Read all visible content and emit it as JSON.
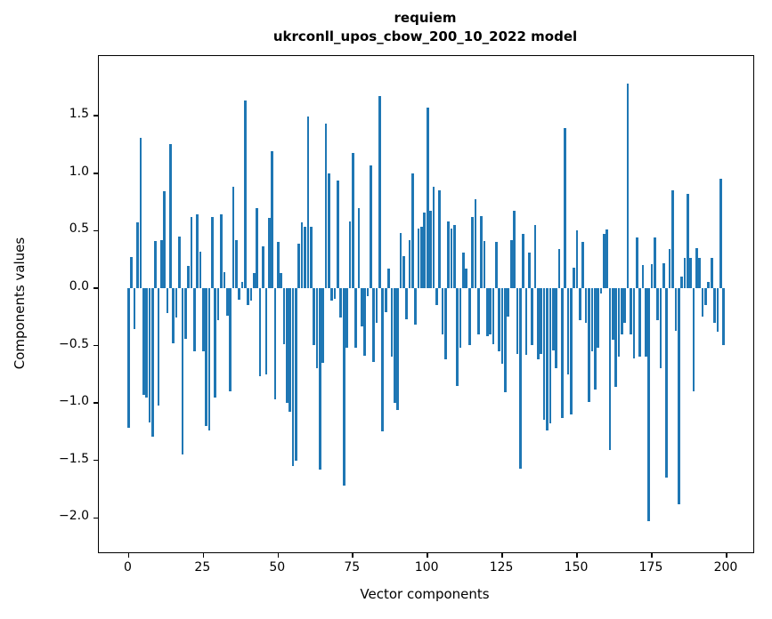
{
  "title": {
    "line1": "requiem",
    "line2": "ukrconll_upos_cbow_200_10_2022 model"
  },
  "chart_data": {
    "type": "bar",
    "title": "requiem",
    "subtitle": "ukrconll_upos_cbow_200_10_2022 model",
    "xlabel": "Vector components",
    "ylabel": "Components values",
    "bar_color": "#1f77b4",
    "grid": false,
    "xlim": [
      -9.95,
      208.95
    ],
    "ylim": [
      -2.3,
      2.02
    ],
    "x_ticks": [
      0,
      25,
      50,
      75,
      100,
      125,
      150,
      175,
      200
    ],
    "x_tick_labels": [
      "0",
      "25",
      "50",
      "75",
      "100",
      "125",
      "150",
      "175",
      "200"
    ],
    "y_ticks": [
      1.5,
      1.0,
      0.5,
      0.0,
      -0.5,
      -1.0,
      -1.5,
      -2.0
    ],
    "y_tick_labels": [
      "1.5",
      "1.0",
      "0.5",
      "0.0",
      "−0.5",
      "−1.0",
      "−1.5",
      "−2.0"
    ],
    "x": [
      0,
      1,
      2,
      3,
      4,
      5,
      6,
      7,
      8,
      9,
      10,
      11,
      12,
      13,
      14,
      15,
      16,
      17,
      18,
      19,
      20,
      21,
      22,
      23,
      24,
      25,
      26,
      27,
      28,
      29,
      30,
      31,
      32,
      33,
      34,
      35,
      36,
      37,
      38,
      39,
      40,
      41,
      42,
      43,
      44,
      45,
      46,
      47,
      48,
      49,
      50,
      51,
      52,
      53,
      54,
      55,
      56,
      57,
      58,
      59,
      60,
      61,
      62,
      63,
      64,
      65,
      66,
      67,
      68,
      69,
      70,
      71,
      72,
      73,
      74,
      75,
      76,
      77,
      78,
      79,
      80,
      81,
      82,
      83,
      84,
      85,
      86,
      87,
      88,
      89,
      90,
      91,
      92,
      93,
      94,
      95,
      96,
      97,
      98,
      99,
      100,
      101,
      102,
      103,
      104,
      105,
      106,
      107,
      108,
      109,
      110,
      111,
      112,
      113,
      114,
      115,
      116,
      117,
      118,
      119,
      120,
      121,
      122,
      123,
      124,
      125,
      126,
      127,
      128,
      129,
      130,
      131,
      132,
      133,
      134,
      135,
      136,
      137,
      138,
      139,
      140,
      141,
      142,
      143,
      144,
      145,
      146,
      147,
      148,
      149,
      150,
      151,
      152,
      153,
      154,
      155,
      156,
      157,
      158,
      159,
      160,
      161,
      162,
      163,
      164,
      165,
      166,
      167,
      168,
      169,
      170,
      171,
      172,
      173,
      174,
      175,
      176,
      177,
      178,
      179,
      180,
      181,
      182,
      183,
      184,
      185,
      186,
      187,
      188,
      189,
      190,
      191,
      192,
      193,
      194,
      195,
      196,
      197,
      198,
      199
    ],
    "values": [
      -1.22,
      0.27,
      -0.36,
      0.57,
      1.31,
      -0.93,
      -0.95,
      -1.17,
      -1.29,
      0.41,
      -1.02,
      0.42,
      0.84,
      -0.22,
      1.25,
      -0.48,
      -0.26,
      0.45,
      -1.45,
      -0.44,
      0.19,
      0.62,
      -0.55,
      0.64,
      0.32,
      -0.55,
      -1.2,
      -1.24,
      0.62,
      -0.95,
      -0.28,
      0.64,
      0.14,
      -0.24,
      -0.9,
      0.88,
      0.42,
      -0.1,
      0.05,
      1.63,
      -0.15,
      -0.11,
      0.13,
      0.7,
      -0.77,
      0.36,
      -0.75,
      0.61,
      1.19,
      -0.97,
      0.4,
      0.13,
      -0.49,
      -1.0,
      -1.08,
      -1.55,
      -1.5,
      0.39,
      0.57,
      0.53,
      1.49,
      0.53,
      -0.5,
      -0.7,
      -1.58,
      -0.65,
      1.43,
      1.0,
      -0.11,
      -0.09,
      0.94,
      -0.26,
      -1.72,
      -0.52,
      0.58,
      1.18,
      -0.52,
      0.7,
      -0.33,
      -0.59,
      -0.07,
      1.07,
      -0.64,
      -0.3,
      1.67,
      -1.25,
      -0.21,
      0.17,
      -0.6,
      -1.0,
      -1.06,
      0.48,
      0.28,
      -0.27,
      0.42,
      1.0,
      -0.32,
      0.52,
      0.53,
      0.66,
      1.57,
      0.67,
      0.88,
      -0.15,
      0.85,
      -0.4,
      -0.62,
      0.58,
      0.52,
      0.55,
      -0.85,
      -0.52,
      0.31,
      0.17,
      -0.5,
      0.62,
      0.77,
      -0.4,
      0.63,
      0.41,
      -0.42,
      -0.4,
      -0.49,
      0.4,
      -0.55,
      -0.66,
      -0.91,
      -0.25,
      0.42,
      0.67,
      -0.57,
      -1.57,
      0.47,
      -0.58,
      0.31,
      -0.5,
      0.55,
      -0.62,
      -0.57,
      -1.15,
      -1.24,
      -1.18,
      -0.54,
      -0.7,
      0.34,
      -1.13,
      1.39,
      -0.75,
      -1.1,
      0.18,
      0.5,
      -0.28,
      0.4,
      -0.3,
      -0.99,
      -0.55,
      -0.88,
      -0.52,
      -0.05,
      0.47,
      0.51,
      -1.41,
      -0.45,
      -0.86,
      -0.6,
      -0.4,
      -0.3,
      1.78,
      -0.4,
      -0.61,
      0.44,
      -0.6,
      0.2,
      -0.6,
      -2.03,
      0.21,
      0.44,
      -0.28,
      -0.7,
      0.22,
      -1.65,
      0.34,
      0.85,
      -0.37,
      -1.88,
      0.1,
      0.26,
      0.82,
      0.26,
      -0.9,
      0.35,
      0.26,
      -0.25,
      -0.15,
      0.05,
      0.26,
      -0.3,
      -0.38,
      0.95,
      -0.5
    ]
  }
}
